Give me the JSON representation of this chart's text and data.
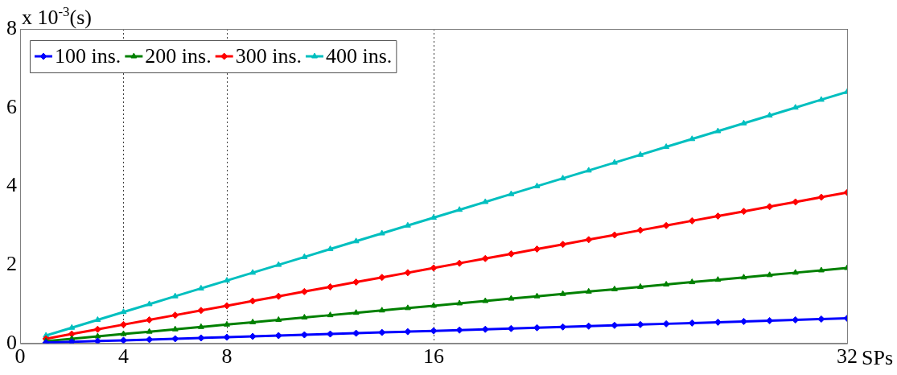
{
  "chart_data": {
    "type": "line",
    "xlabel": "SPs",
    "ylabel": "x 10$^{-3}$(s)",
    "x": [
      1,
      2,
      3,
      4,
      5,
      6,
      7,
      8,
      9,
      10,
      11,
      12,
      13,
      14,
      15,
      16,
      17,
      18,
      19,
      20,
      21,
      22,
      23,
      24,
      25,
      26,
      27,
      28,
      29,
      30,
      31,
      32
    ],
    "series": [
      {
        "name": "100 ins.",
        "color": "#0000ff",
        "marker": "diamond",
        "values": [
          0.02,
          0.04,
          0.06,
          0.08,
          0.1,
          0.12,
          0.14,
          0.16,
          0.18,
          0.2,
          0.22,
          0.24,
          0.26,
          0.28,
          0.3,
          0.32,
          0.34,
          0.36,
          0.38,
          0.4,
          0.42,
          0.44,
          0.46,
          0.48,
          0.5,
          0.52,
          0.54,
          0.56,
          0.58,
          0.6,
          0.62,
          0.64
        ]
      },
      {
        "name": "200 ins.",
        "color": "#008000",
        "marker": "triangle",
        "values": [
          0.06,
          0.12,
          0.18,
          0.24,
          0.3,
          0.36,
          0.42,
          0.48,
          0.54,
          0.6,
          0.66,
          0.72,
          0.78,
          0.84,
          0.9,
          0.96,
          1.02,
          1.08,
          1.14,
          1.2,
          1.26,
          1.32,
          1.38,
          1.44,
          1.5,
          1.56,
          1.62,
          1.68,
          1.74,
          1.8,
          1.86,
          1.92
        ]
      },
      {
        "name": "300 ins.",
        "color": "#ff0000",
        "marker": "diamond",
        "values": [
          0.12,
          0.24,
          0.36,
          0.48,
          0.6,
          0.72,
          0.84,
          0.96,
          1.08,
          1.2,
          1.32,
          1.44,
          1.56,
          1.68,
          1.8,
          1.92,
          2.04,
          2.16,
          2.28,
          2.4,
          2.52,
          2.64,
          2.76,
          2.88,
          3,
          3.12,
          3.24,
          3.36,
          3.48,
          3.6,
          3.72,
          3.84
        ]
      },
      {
        "name": "400 ins.",
        "color": "#00bfbf",
        "marker": "triangle",
        "values": [
          0.2,
          0.4,
          0.6,
          0.8,
          1,
          1.2,
          1.4,
          1.6,
          1.8,
          2,
          2.2,
          2.4,
          2.6,
          2.8,
          3,
          3.2,
          3.4,
          3.6,
          3.8,
          4,
          4.2,
          4.4,
          4.6,
          4.8,
          5,
          5.2,
          5.4,
          5.6,
          5.8,
          6,
          6.2,
          6.4
        ]
      }
    ],
    "xlim": [
      0,
      32
    ],
    "xticks": [
      0,
      4,
      8,
      16,
      32
    ],
    "ylim": [
      0,
      8
    ],
    "yticks": [
      0,
      2,
      4,
      6,
      8
    ],
    "grid": "x",
    "legend": "top left",
    "line_style": "solid"
  }
}
